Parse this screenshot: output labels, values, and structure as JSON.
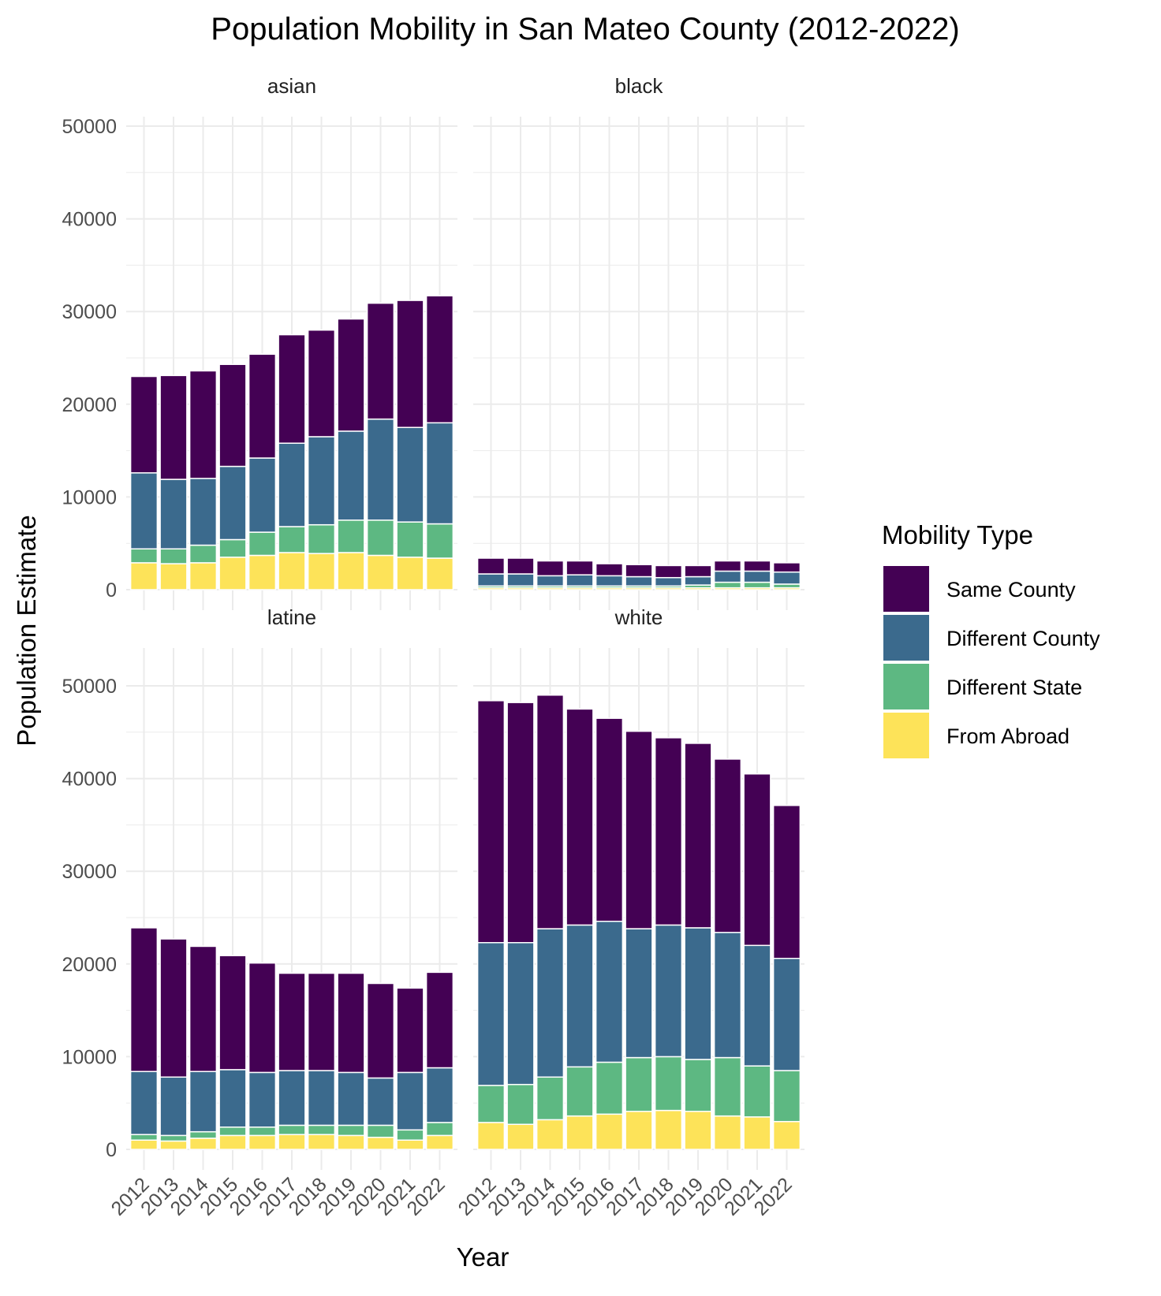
{
  "chart_data": {
    "type": "bar",
    "stacked": true,
    "faceted": true,
    "title": "Population Mobility in San Mateo County (2012-2022)",
    "xlabel": "Year",
    "ylabel": "Population Estimate",
    "ylim": [
      0,
      50000
    ],
    "yticks": [
      "0",
      "10000",
      "20000",
      "30000",
      "40000",
      "50000"
    ],
    "grid": true,
    "legend": {
      "title": "Mobility Type",
      "position": "right",
      "entries": [
        {
          "name": "Same County",
          "color": "#440154"
        },
        {
          "name": "Different County",
          "color": "#3B6A8D"
        },
        {
          "name": "Different State",
          "color": "#5DB882"
        },
        {
          "name": "From Abroad",
          "color": "#FDE359"
        }
      ]
    },
    "categories": [
      "2012",
      "2013",
      "2014",
      "2015",
      "2016",
      "2017",
      "2018",
      "2019",
      "2020",
      "2021",
      "2022"
    ],
    "stack_order": [
      "From Abroad",
      "Different State",
      "Different County",
      "Same County"
    ],
    "facets": [
      {
        "name": "asian",
        "series": [
          {
            "name": "From Abroad",
            "values": [
              2900,
              2800,
              2900,
              3500,
              3700,
              4000,
              3900,
              4000,
              3700,
              3500,
              3400
            ]
          },
          {
            "name": "Different State",
            "values": [
              1500,
              1600,
              1900,
              1900,
              2500,
              2800,
              3100,
              3500,
              3800,
              3800,
              3700
            ]
          },
          {
            "name": "Different County",
            "values": [
              8200,
              7500,
              7200,
              7900,
              8000,
              9000,
              9500,
              9600,
              10900,
              10200,
              10900
            ]
          },
          {
            "name": "Same County",
            "values": [
              10400,
              11200,
              11600,
              11000,
              11200,
              11700,
              11500,
              12100,
              12500,
              13700,
              13700
            ]
          }
        ]
      },
      {
        "name": "black",
        "series": [
          {
            "name": "From Abroad",
            "values": [
              200,
              200,
              200,
              200,
              200,
              200,
              200,
              200,
              200,
              200,
              200
            ]
          },
          {
            "name": "Different State",
            "values": [
              200,
              200,
              200,
              200,
              200,
              200,
              200,
              300,
              600,
              600,
              400
            ]
          },
          {
            "name": "Different County",
            "values": [
              1300,
              1300,
              1100,
              1200,
              1100,
              1000,
              900,
              900,
              1200,
              1200,
              1300
            ]
          },
          {
            "name": "Same County",
            "values": [
              1700,
              1700,
              1600,
              1500,
              1300,
              1300,
              1300,
              1200,
              1100,
              1100,
              1000
            ]
          }
        ]
      },
      {
        "name": "latine",
        "series": [
          {
            "name": "From Abroad",
            "values": [
              1000,
              900,
              1200,
              1500,
              1500,
              1600,
              1600,
              1500,
              1300,
              1000,
              1500
            ]
          },
          {
            "name": "Different State",
            "values": [
              600,
              600,
              700,
              900,
              900,
              1000,
              1000,
              1100,
              1300,
              1100,
              1400
            ]
          },
          {
            "name": "Different County",
            "values": [
              6800,
              6300,
              6500,
              6200,
              5900,
              5900,
              5900,
              5700,
              5100,
              6200,
              5900
            ]
          },
          {
            "name": "Same County",
            "values": [
              15500,
              14900,
              13500,
              12300,
              11800,
              10500,
              10500,
              10700,
              10200,
              9100,
              10300
            ]
          }
        ]
      },
      {
        "name": "white",
        "series": [
          {
            "name": "From Abroad",
            "values": [
              2900,
              2700,
              3200,
              3600,
              3800,
              4100,
              4200,
              4100,
              3600,
              3500,
              3000
            ]
          },
          {
            "name": "Different State",
            "values": [
              4000,
              4300,
              4600,
              5300,
              5600,
              5800,
              5800,
              5600,
              6300,
              5500,
              5500
            ]
          },
          {
            "name": "Different County",
            "values": [
              15400,
              15300,
              16000,
              15300,
              15200,
              13900,
              14200,
              14200,
              13500,
              13000,
              12100
            ]
          },
          {
            "name": "Same County",
            "values": [
              26100,
              25900,
              25200,
              23300,
              21900,
              21300,
              20200,
              19900,
              18700,
              18500,
              16500
            ]
          }
        ]
      }
    ]
  }
}
